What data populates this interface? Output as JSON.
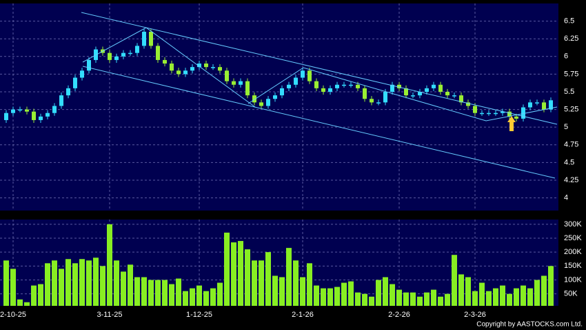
{
  "chart_data": {
    "type": "candlestick",
    "categories": [
      null,
      "2-10-25",
      null,
      null,
      null,
      null,
      null,
      null,
      null,
      null,
      null,
      null,
      null,
      null,
      null,
      "3-11-25",
      null,
      null,
      null,
      null,
      null,
      null,
      null,
      null,
      null,
      null,
      null,
      null,
      "1-12-25",
      null,
      null,
      null,
      null,
      null,
      null,
      null,
      null,
      null,
      null,
      null,
      null,
      null,
      null,
      "2-1-26",
      null,
      null,
      null,
      null,
      null,
      null,
      null,
      null,
      null,
      null,
      null,
      null,
      null,
      "2-2-26",
      null,
      null,
      null,
      null,
      null,
      null,
      null,
      null,
      null,
      null,
      "2-3-26",
      null,
      null,
      null,
      null,
      null,
      null,
      null,
      null,
      null,
      null,
      null
    ],
    "open": [
      5.1,
      5.2,
      5.25,
      5.25,
      5.22,
      5.1,
      5.15,
      5.2,
      5.3,
      5.45,
      5.55,
      5.7,
      5.8,
      5.95,
      6.1,
      6.05,
      5.95,
      6.0,
      6.05,
      6.05,
      6.15,
      6.35,
      6.15,
      5.95,
      5.9,
      5.8,
      5.75,
      5.8,
      5.85,
      5.9,
      5.85,
      5.85,
      5.8,
      5.65,
      5.6,
      5.65,
      5.45,
      5.35,
      5.3,
      5.4,
      5.45,
      5.55,
      5.6,
      5.7,
      5.8,
      5.65,
      5.55,
      5.5,
      5.55,
      5.6,
      5.6,
      5.6,
      5.55,
      5.4,
      5.35,
      5.35,
      5.5,
      5.6,
      5.55,
      5.45,
      5.45,
      5.5,
      5.55,
      5.6,
      5.5,
      5.45,
      5.45,
      5.35,
      5.3,
      5.2,
      5.2,
      5.2,
      5.2,
      5.22,
      5.15,
      5.12,
      5.28,
      5.35,
      5.35,
      5.25
    ],
    "high": [
      5.24,
      5.29,
      5.29,
      5.29,
      5.26,
      5.19,
      5.24,
      5.34,
      5.49,
      5.59,
      5.74,
      5.84,
      5.99,
      6.14,
      6.14,
      6.09,
      6.04,
      6.09,
      6.09,
      6.19,
      6.39,
      6.39,
      6.19,
      5.99,
      5.94,
      5.84,
      5.84,
      5.89,
      5.94,
      5.94,
      5.89,
      5.89,
      5.84,
      5.69,
      5.69,
      5.69,
      5.49,
      5.39,
      5.44,
      5.49,
      5.59,
      5.64,
      5.74,
      5.84,
      5.84,
      5.69,
      5.59,
      5.59,
      5.64,
      5.64,
      5.64,
      5.64,
      5.59,
      5.44,
      5.39,
      5.54,
      5.64,
      5.64,
      5.59,
      5.49,
      5.54,
      5.59,
      5.64,
      5.64,
      5.54,
      5.49,
      5.49,
      5.39,
      5.34,
      5.24,
      5.24,
      5.24,
      5.26,
      5.26,
      5.19,
      5.32,
      5.39,
      5.39,
      5.39,
      5.42
    ],
    "low": [
      5.06,
      5.16,
      5.21,
      5.18,
      5.06,
      5.06,
      5.11,
      5.16,
      5.26,
      5.41,
      5.51,
      5.66,
      5.76,
      5.91,
      6.01,
      5.91,
      5.91,
      5.96,
      6.01,
      6.01,
      6.11,
      6.11,
      5.91,
      5.86,
      5.76,
      5.71,
      5.71,
      5.76,
      5.81,
      5.81,
      5.81,
      5.76,
      5.61,
      5.56,
      5.56,
      5.41,
      5.31,
      5.26,
      5.26,
      5.36,
      5.41,
      5.51,
      5.56,
      5.66,
      5.61,
      5.51,
      5.46,
      5.46,
      5.51,
      5.56,
      5.56,
      5.51,
      5.36,
      5.31,
      5.31,
      5.31,
      5.46,
      5.51,
      5.41,
      5.41,
      5.41,
      5.46,
      5.51,
      5.46,
      5.41,
      5.41,
      5.31,
      5.26,
      5.16,
      5.16,
      5.16,
      5.16,
      5.16,
      5.11,
      5.08,
      5.08,
      5.24,
      5.31,
      5.21,
      5.21
    ],
    "close": [
      5.2,
      5.25,
      5.25,
      5.22,
      5.1,
      5.15,
      5.2,
      5.3,
      5.45,
      5.55,
      5.7,
      5.8,
      5.95,
      6.1,
      6.05,
      5.95,
      6.0,
      6.05,
      6.05,
      6.15,
      6.35,
      6.15,
      5.95,
      5.9,
      5.8,
      5.75,
      5.8,
      5.85,
      5.9,
      5.85,
      5.85,
      5.8,
      5.65,
      5.6,
      5.65,
      5.45,
      5.35,
      5.3,
      5.4,
      5.45,
      5.55,
      5.6,
      5.7,
      5.8,
      5.65,
      5.55,
      5.5,
      5.55,
      5.6,
      5.6,
      5.6,
      5.55,
      5.4,
      5.35,
      5.35,
      5.5,
      5.6,
      5.55,
      5.45,
      5.45,
      5.5,
      5.55,
      5.6,
      5.5,
      5.45,
      5.45,
      5.35,
      5.3,
      5.2,
      5.2,
      5.2,
      5.2,
      5.22,
      5.15,
      5.12,
      5.28,
      5.35,
      5.35,
      5.25,
      5.38
    ],
    "up_color": "#33ddff",
    "down_color": "#99ee33",
    "ylim": [
      3.82,
      6.75
    ],
    "yticks": [
      4,
      4.25,
      4.5,
      4.75,
      5,
      5.25,
      5.5,
      5.75,
      6,
      6.25,
      6.5
    ],
    "grid": true,
    "volume": {
      "color": "#88ee22",
      "values": [
        170000,
        140000,
        30000,
        20000,
        80000,
        85000,
        160000,
        170000,
        140000,
        175000,
        160000,
        175000,
        170000,
        180000,
        150000,
        300000,
        170000,
        130000,
        155000,
        110000,
        110000,
        100000,
        100000,
        100000,
        85000,
        105000,
        60000,
        70000,
        80000,
        60000,
        70000,
        90000,
        270000,
        235000,
        240000,
        210000,
        170000,
        170000,
        200000,
        115000,
        110000,
        215000,
        170000,
        110000,
        160000,
        80000,
        70000,
        70000,
        75000,
        90000,
        95000,
        55000,
        50000,
        40000,
        100000,
        110000,
        85000,
        65000,
        55000,
        55000,
        40000,
        55000,
        65000,
        40000,
        50000,
        190000,
        120000,
        110000,
        60000,
        90000,
        60000,
        70000,
        80000,
        50000,
        70000,
        80000,
        70000,
        100000,
        115000,
        150000
      ],
      "ylim": [
        7000,
        317000
      ],
      "yticks": [
        {
          "value": 50000,
          "label": "50K"
        },
        {
          "value": 100000,
          "label": "100K"
        },
        {
          "value": 150000,
          "label": "150K"
        },
        {
          "value": 200000,
          "label": "200K"
        },
        {
          "value": 250000,
          "label": "250K"
        },
        {
          "value": 300000,
          "label": "300K"
        }
      ]
    },
    "credit": "Copyright by AASTOCKS.com Ltd."
  }
}
